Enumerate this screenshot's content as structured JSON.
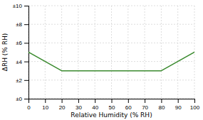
{
  "chart_data": {
    "type": "line",
    "x": [
      0,
      20,
      80,
      100
    ],
    "values": [
      5,
      3,
      3,
      5
    ],
    "color": "#3a8a2e",
    "xlabel": "Relative Humidity (% RH)",
    "ylabel": "ΔRH (% RH)",
    "xlim": [
      0,
      100
    ],
    "ylim": [
      0,
      10
    ],
    "xticks": [
      0,
      10,
      20,
      30,
      40,
      50,
      60,
      70,
      80,
      90,
      100
    ],
    "yticks": [
      {
        "value": 0,
        "label": "±0"
      },
      {
        "value": 2,
        "label": "±2"
      },
      {
        "value": 4,
        "label": "±4"
      },
      {
        "value": 6,
        "label": "±6"
      },
      {
        "value": 8,
        "label": "±8"
      },
      {
        "value": 10,
        "label": "±10"
      }
    ],
    "grid": true
  }
}
